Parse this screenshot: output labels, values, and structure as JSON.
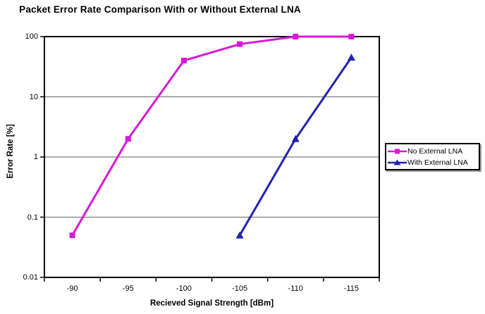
{
  "colors": {
    "background": "#ffffff",
    "axis": "#000000",
    "gridline": "#7d7d7d",
    "magenta_series": "#d619d6",
    "blue_series": "#2222ae",
    "legend_shadow": "#9c9c9c"
  },
  "chart_data": {
    "type": "line",
    "title": "Packet Error Rate Comparison With or Without External LNA",
    "xlabel": "Recieved Signal Strength [dBm]",
    "ylabel": "Error Rate [%]",
    "y_scale": "log",
    "ylim": [
      0.01,
      100
    ],
    "y_ticks": [
      100,
      10,
      1,
      0.1,
      0.01
    ],
    "categories": [
      "-90",
      "-95",
      "-100",
      "-105",
      "-110",
      "-115"
    ],
    "grid": "horizontal-major",
    "legend_position": "right",
    "series": [
      {
        "name": "No External LNA",
        "color": "#d619d6",
        "marker": "square",
        "values": [
          0.05,
          2,
          40,
          75,
          100,
          100
        ]
      },
      {
        "name": "With External LNA",
        "color": "#2222ae",
        "marker": "triangle",
        "values": [
          null,
          null,
          null,
          0.05,
          2,
          45
        ]
      }
    ]
  }
}
